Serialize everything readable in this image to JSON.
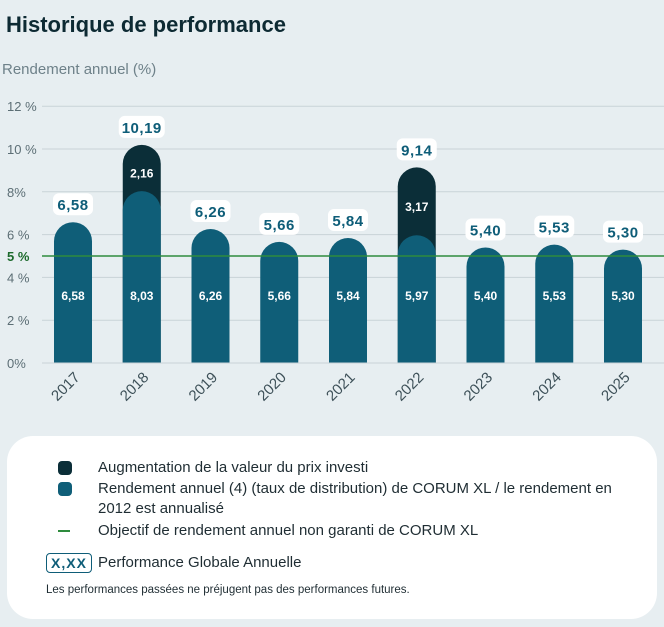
{
  "header": {
    "title": "Historique de performance",
    "subtitle": "Rendement annuel (%)"
  },
  "colors": {
    "dark": "#0b2e38",
    "teal": "#0f5e78",
    "target": "#2e8b3d",
    "label_text": "#0e5d78"
  },
  "chart_data": {
    "type": "bar",
    "stacked": true,
    "categories": [
      "2017",
      "2018",
      "2019",
      "2020",
      "2021",
      "2022",
      "2023",
      "2024",
      "2025"
    ],
    "series": [
      {
        "name": "Rendement annuel (4) (taux de distribution) de CORUM XL / le rendement en 2012 est annualisé",
        "values": [
          6.58,
          8.03,
          6.26,
          5.66,
          5.84,
          5.97,
          5.4,
          5.53,
          5.3
        ],
        "labels": [
          "6,58",
          "8,03",
          "6,26",
          "5,66",
          "5,84",
          "5,97",
          "5,40",
          "5,53",
          "5,30"
        ]
      },
      {
        "name": "Augmentation de la valeur du prix investi",
        "values": [
          0,
          2.16,
          0,
          0,
          0,
          3.17,
          0,
          0,
          0
        ],
        "labels": [
          "",
          "2,16",
          "",
          "",
          "",
          "3,17",
          "",
          "",
          ""
        ]
      }
    ],
    "totals": [
      6.58,
      10.19,
      6.26,
      5.66,
      5.84,
      9.14,
      5.4,
      5.53,
      5.3
    ],
    "total_labels": [
      "6,58",
      "10,19",
      "6,26",
      "5,66",
      "5,84",
      "9,14",
      "5,40",
      "5,53",
      "5,30"
    ],
    "y_ticks": [
      {
        "value": 0,
        "label": "0%"
      },
      {
        "value": 2,
        "label": "2 %"
      },
      {
        "value": 4,
        "label": "4 %"
      },
      {
        "value": 5,
        "label": "5 %"
      },
      {
        "value": 6,
        "label": "6 %"
      },
      {
        "value": 8,
        "label": "8%"
      },
      {
        "value": 10,
        "label": "10 %"
      },
      {
        "value": 12,
        "label": "12 %"
      }
    ],
    "ylim": [
      0,
      12
    ],
    "target": 5,
    "grid": true,
    "legend_position": "bottom"
  },
  "legend": {
    "items": [
      {
        "label": "Augmentation de la valeur du prix investi"
      },
      {
        "label": "Rendement annuel (4) (taux de distribution) de CORUM XL / le rendement en 2012 est annualisé"
      },
      {
        "label": "Objectif de rendement annuel non garanti de CORUM XL"
      }
    ],
    "badge_text": "X,XX",
    "badge_label": "Performance Globale Annuelle",
    "disclaimer": "Les performances passées ne préjugent pas des performances futures."
  }
}
